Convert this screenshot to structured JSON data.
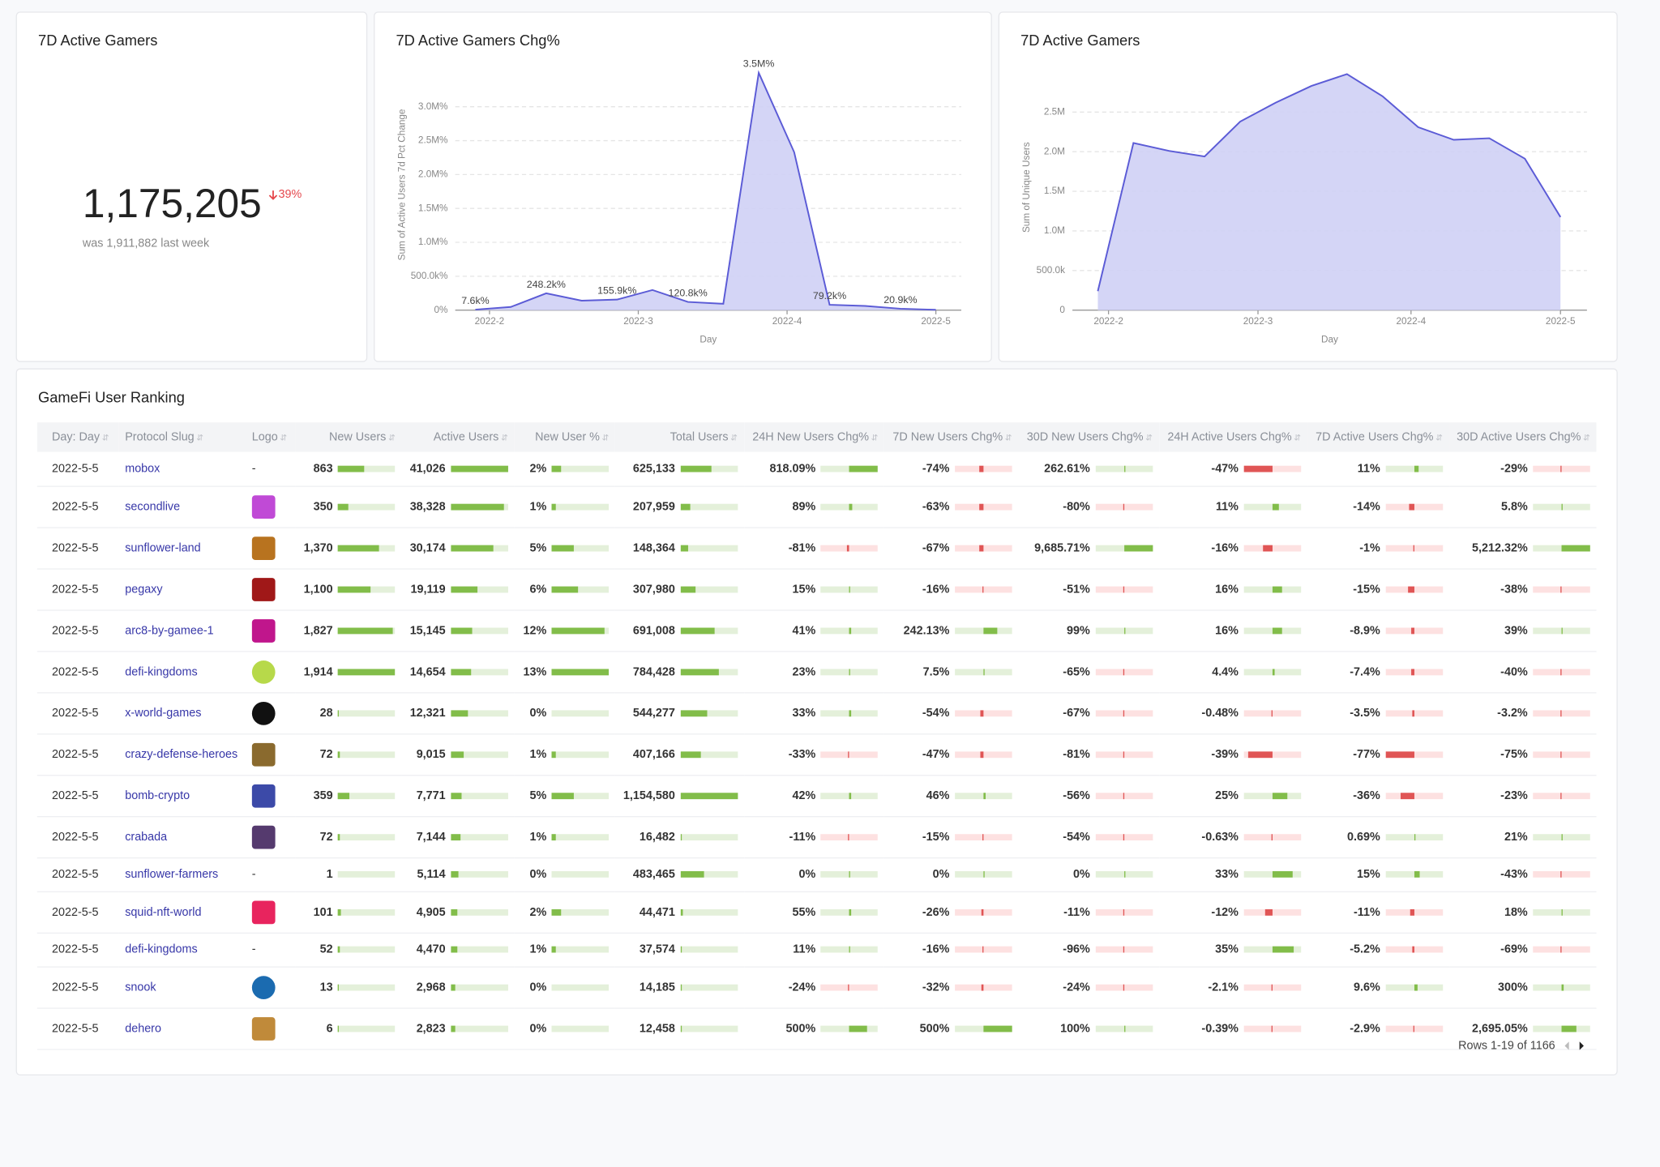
{
  "kpi": {
    "title": "7D Active Gamers",
    "value": "1,175,205",
    "change": "39%",
    "note": "was 1,911,882 last week"
  },
  "chart_data": [
    {
      "type": "area",
      "title": "7D Active Gamers Chg%",
      "y_label": "Sum of Active Users 7d Pct Change",
      "x_label": "Day",
      "color": "#5b5bd6",
      "fill": "#cfd0f5",
      "categories": [
        null,
        null,
        null,
        null,
        null,
        null,
        null,
        null,
        null,
        null,
        null,
        null,
        null,
        null
      ],
      "values": [
        7600,
        47000,
        248200,
        140000,
        155900,
        297000,
        120800,
        94000,
        3500000,
        2330000,
        79200,
        62000,
        20900,
        5000
      ],
      "value_labels": [
        "7.6k%",
        null,
        "248.2k%",
        null,
        "155.9k%",
        null,
        "120.8k%",
        null,
        "3.5M%",
        null,
        "79.2k%",
        null,
        "20.9k%",
        null
      ],
      "xlim": [
        0,
        13
      ],
      "xticks": [
        {
          "value": 0.4,
          "label": "2022-2"
        },
        {
          "value": 4.6,
          "label": "2022-3"
        },
        {
          "value": 8.8,
          "label": "2022-4"
        },
        {
          "value": 13,
          "label": "2022-5"
        }
      ],
      "ylim": [
        0,
        3700000
      ],
      "yticks": [
        {
          "value": 0,
          "label": "0%"
        },
        {
          "value": 500000,
          "label": "500.0k%"
        },
        {
          "value": 1000000,
          "label": "1.0M%"
        },
        {
          "value": 1500000,
          "label": "1.5M%"
        },
        {
          "value": 2000000,
          "label": "2.0M%"
        },
        {
          "value": 2500000,
          "label": "2.5M%"
        },
        {
          "value": 3000000,
          "label": "3.0M%"
        }
      ],
      "grid": true
    },
    {
      "type": "area",
      "title": "7D Active Gamers",
      "y_label": "Sum of Unique Users",
      "x_label": "Day",
      "color": "#5b5bd6",
      "fill": "#cfd0f5",
      "categories": [
        null,
        null,
        null,
        null,
        null,
        null,
        null,
        null,
        null,
        null,
        null,
        null,
        null,
        null
      ],
      "values": [
        240000,
        2110000,
        2010000,
        1940000,
        2380000,
        2620000,
        2830000,
        2980000,
        2700000,
        2310000,
        2150000,
        2170000,
        1911882,
        1175205
      ],
      "xlim": [
        0,
        13
      ],
      "xticks": [
        {
          "value": 0.3,
          "label": "2022-2"
        },
        {
          "value": 4.5,
          "label": "2022-3"
        },
        {
          "value": 8.8,
          "label": "2022-4"
        },
        {
          "value": 13,
          "label": "2022-5"
        }
      ],
      "ylim": [
        0,
        3100000
      ],
      "yticks": [
        0,
        {
          "value": 500000,
          "label": "500.0k"
        },
        {
          "value": 1000000,
          "label": "1.0M"
        },
        {
          "value": 1500000,
          "label": "1.5M"
        },
        {
          "value": 2000000,
          "label": "2.0M"
        },
        {
          "value": 2500000,
          "label": "2.5M"
        }
      ],
      "grid": true
    }
  ],
  "table": {
    "title": "GameFi User Ranking",
    "columns": [
      "Day: Day",
      "Protocol Slug",
      "Logo",
      "New Users",
      "Active Users",
      "New User %",
      "Total Users",
      "24H New Users Chg%",
      "7D New Users Chg%",
      "30D New Users Chg%",
      "24H Active Users Chg%",
      "7D Active Users Chg%",
      "30D Active Users Chg%"
    ],
    "rows": [
      [
        "2022-5-5",
        "mobox",
        "-",
        "863",
        "41,026",
        "2%",
        "625,133",
        "818.09%",
        "-74%",
        "262.61%",
        "-47%",
        "11%",
        "-29%"
      ],
      [
        "2022-5-5",
        "secondlive",
        null,
        "350",
        "38,328",
        "1%",
        "207,959",
        "89%",
        "-63%",
        "-80%",
        "11%",
        "-14%",
        "5.8%"
      ],
      [
        "2022-5-5",
        "sunflower-land",
        null,
        "1,370",
        "30,174",
        "5%",
        "148,364",
        "-81%",
        "-67%",
        "9,685.71%",
        "-16%",
        "-1%",
        "5,212.32%"
      ],
      [
        "2022-5-5",
        "pegaxy",
        null,
        "1,100",
        "19,119",
        "6%",
        "307,980",
        "15%",
        "-16%",
        "-51%",
        "16%",
        "-15%",
        "-38%"
      ],
      [
        "2022-5-5",
        "arc8-by-gamee-1",
        null,
        "1,827",
        "15,145",
        "12%",
        "691,008",
        "41%",
        "242.13%",
        "99%",
        "16%",
        "-8.9%",
        "39%"
      ],
      [
        "2022-5-5",
        "defi-kingdoms",
        null,
        "1,914",
        "14,654",
        "13%",
        "784,428",
        "23%",
        "7.5%",
        "-65%",
        "4.4%",
        "-7.4%",
        "-40%"
      ],
      [
        "2022-5-5",
        "x-world-games",
        null,
        "28",
        "12,321",
        "0%",
        "544,277",
        "33%",
        "-54%",
        "-67%",
        "-0.48%",
        "-3.5%",
        "-3.2%"
      ],
      [
        "2022-5-5",
        "crazy-defense-heroes",
        null,
        "72",
        "9,015",
        "1%",
        "407,166",
        "-33%",
        "-47%",
        "-81%",
        "-39%",
        "-77%",
        "-75%"
      ],
      [
        "2022-5-5",
        "bomb-crypto",
        null,
        "359",
        "7,771",
        "5%",
        "1,154,580",
        "42%",
        "46%",
        "-56%",
        "25%",
        "-36%",
        "-23%"
      ],
      [
        "2022-5-5",
        "crabada",
        null,
        "72",
        "7,144",
        "1%",
        "16,482",
        "-11%",
        "-15%",
        "-54%",
        "-0.63%",
        "0.69%",
        "21%"
      ],
      [
        "2022-5-5",
        "sunflower-farmers",
        "-",
        "1",
        "5,114",
        "0%",
        "483,465",
        "0%",
        "0%",
        "0%",
        "33%",
        "15%",
        "-43%"
      ],
      [
        "2022-5-5",
        "squid-nft-world",
        null,
        "101",
        "4,905",
        "2%",
        "44,471",
        "55%",
        "-26%",
        "-11%",
        "-12%",
        "-11%",
        "18%"
      ],
      [
        "2022-5-5",
        "defi-kingdoms",
        "-",
        "52",
        "4,470",
        "1%",
        "37,574",
        "11%",
        "-16%",
        "-96%",
        "35%",
        "-5.2%",
        "-69%"
      ],
      [
        "2022-5-5",
        "snook",
        null,
        "13",
        "2,968",
        "0%",
        "14,185",
        "-24%",
        "-32%",
        "-24%",
        "-2.1%",
        "9.6%",
        "300%"
      ],
      [
        "2022-5-5",
        "dehero",
        null,
        "6",
        "2,823",
        "0%",
        "12,458",
        "500%",
        "500%",
        "100%",
        "-0.39%",
        "-2.9%",
        "2,695.05%"
      ]
    ],
    "footer": "Rows 1-19 of 1166"
  }
}
